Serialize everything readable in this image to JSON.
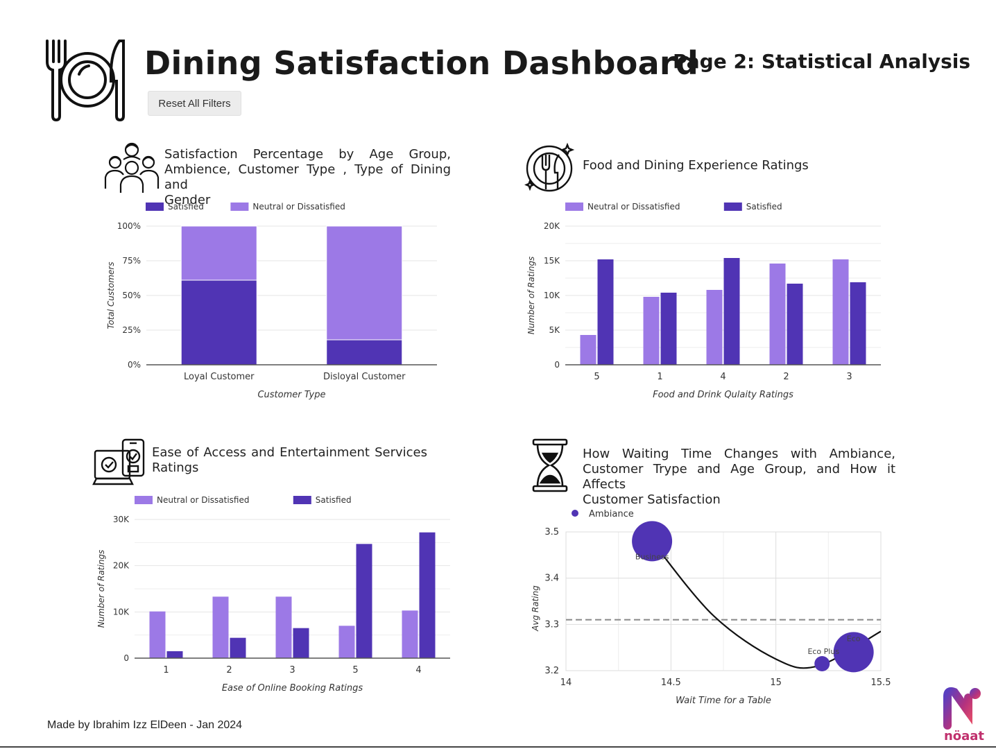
{
  "header": {
    "title": "Dining Satisfaction Dashboard",
    "page_label": "Page 2: Statistical Analysis",
    "reset_button": "Reset All Filters",
    "logo_icon": "plate-fork-knife-icon"
  },
  "footer": {
    "credit": "Made by Ibrahim Izz ElDeen - Jan 2024",
    "brand": "nöaat"
  },
  "colors": {
    "satisfied": "#5034b4",
    "neutral": "#9c79e6",
    "grid": "#e4e4e4",
    "axis": "#555555"
  },
  "panels": {
    "age": {
      "title_lines": [
        "Satisfaction Percentage by Age Group,",
        "Ambience, Customer Type , Type of Dining and",
        "Gender"
      ],
      "icon": "people-group-icon"
    },
    "food": {
      "title_lines": [
        "Food and Dining Experience Ratings"
      ],
      "icon": "dining-plate-icon"
    },
    "access": {
      "title_lines": [
        "Ease of Access and Entertainment Services",
        "Ratings"
      ],
      "icon": "devices-check-icon"
    },
    "wait": {
      "title_lines": [
        "How Waiting Time Changes with Ambiance,",
        "Customer Trype and Age Group, and How it Affects",
        "Customer Satisfaction"
      ],
      "icon": "hourglass-icon"
    }
  },
  "chart_data": [
    {
      "id": "age",
      "type": "bar",
      "stacked": true,
      "legend": [
        "Satisfied",
        "Neutral or Dissatisfied"
      ],
      "legend_position": "top-left",
      "categories": [
        "Loyal Customer",
        "Disloyal Customer"
      ],
      "series": [
        {
          "name": "Satisfied",
          "values": [
            61,
            18
          ]
        },
        {
          "name": "Neutral or Dissatisfied",
          "values": [
            39,
            82
          ]
        }
      ],
      "yticks": [
        "0%",
        "25%",
        "50%",
        "75%",
        "100%"
      ],
      "ylim": [
        0,
        100
      ],
      "xlabel": "Customer Type",
      "ylabel": "Total Customers",
      "grid": true
    },
    {
      "id": "food",
      "type": "bar",
      "legend": [
        "Neutral or Dissatisfied",
        "Satisfied"
      ],
      "legend_position": "top-left",
      "categories": [
        "5",
        "1",
        "4",
        "2",
        "3"
      ],
      "series": [
        {
          "name": "Neutral or Dissatisfied",
          "values": [
            4300,
            9800,
            10800,
            14600,
            15200
          ]
        },
        {
          "name": "Satisfied",
          "values": [
            15200,
            10400,
            15400,
            11700,
            11900
          ]
        }
      ],
      "yticks": [
        "0",
        "5K",
        "10K",
        "15K",
        "20K"
      ],
      "ylim": [
        0,
        20000
      ],
      "xlabel": "Food and Drink Qulaity Ratings",
      "ylabel": "Number of Ratings",
      "grid": true
    },
    {
      "id": "access",
      "type": "bar",
      "legend": [
        "Neutral or Dissatisfied",
        "Satisfied"
      ],
      "legend_position": "top-left",
      "categories": [
        "1",
        "2",
        "3",
        "5",
        "4"
      ],
      "series": [
        {
          "name": "Neutral or Dissatisfied",
          "values": [
            10100,
            13300,
            13300,
            7000,
            10300
          ]
        },
        {
          "name": "Satisfied",
          "values": [
            1500,
            4400,
            6500,
            24700,
            27200
          ]
        }
      ],
      "yticks": [
        "0",
        "10K",
        "20K",
        "30K"
      ],
      "ylim": [
        0,
        30000
      ],
      "xlabel": "Ease of Online Booking Ratings",
      "ylabel": "Number of Ratings",
      "grid": true
    },
    {
      "id": "wait",
      "type": "scatter",
      "legend": [
        "Ambiance"
      ],
      "legend_position": "top-left",
      "points": [
        {
          "label": "Business",
          "x": 14.41,
          "y": 3.48,
          "size": "large"
        },
        {
          "label": "Eco Plus",
          "x": 15.22,
          "y": 3.215,
          "size": "small"
        },
        {
          "label": "Eco",
          "x": 15.37,
          "y": 3.24,
          "size": "large"
        }
      ],
      "trend_points": [
        [
          14.41,
          3.48
        ],
        [
          14.7,
          3.32
        ],
        [
          15.0,
          3.225
        ],
        [
          15.2,
          3.21
        ],
        [
          15.5,
          3.285
        ]
      ],
      "reference_line_y": 3.31,
      "xticks": [
        "14",
        "14.5",
        "15",
        "15.5"
      ],
      "yticks": [
        "3.2",
        "3.3",
        "3.4",
        "3.5"
      ],
      "xlim": [
        14,
        15.5
      ],
      "ylim": [
        3.2,
        3.5
      ],
      "xlabel": "Wait Time for a Table",
      "ylabel": "Avg Rating",
      "grid": true
    }
  ]
}
